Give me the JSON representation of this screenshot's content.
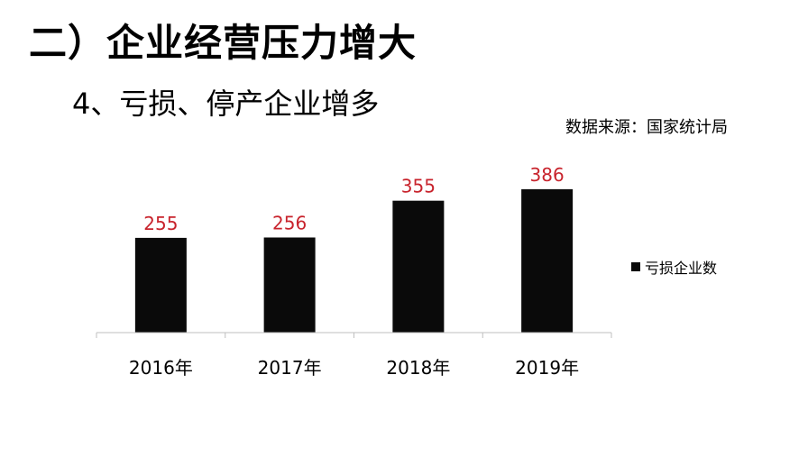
{
  "slide": {
    "title": "二）企业经营压力增大",
    "subtitle": "4、亏损、停产企业增多",
    "source": "数据来源：国家统计局"
  },
  "colors": {
    "bar": "#0a0a0a",
    "data_label": "#c8232c",
    "axis": "#bfbfbf",
    "text": "#000000"
  },
  "chart_data": {
    "type": "bar",
    "categories": [
      "2016年",
      "2017年",
      "2018年",
      "2019年"
    ],
    "series": [
      {
        "name": "亏损企业数",
        "values": [
          255,
          256,
          355,
          386
        ]
      }
    ],
    "ylim": [
      0,
      410
    ],
    "legend_position": "right",
    "grid": false,
    "data_labels": true,
    "y_axis_visible": false
  }
}
